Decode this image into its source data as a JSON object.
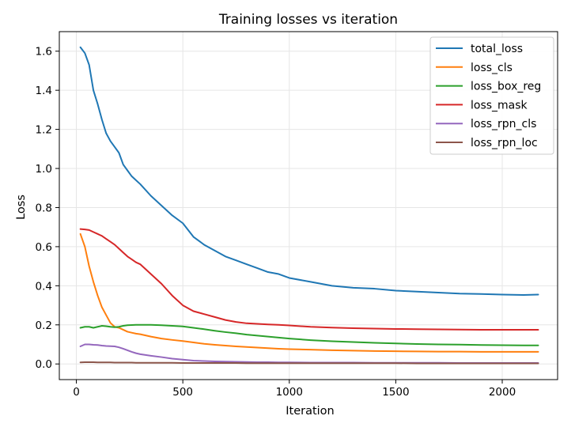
{
  "chart_data": {
    "type": "line",
    "title": "Training losses vs iteration",
    "xlabel": "Iteration",
    "ylabel": "Loss",
    "xlim": [
      -80,
      2260
    ],
    "ylim": [
      -0.08,
      1.7
    ],
    "xticks": [
      0,
      500,
      1000,
      1500,
      2000
    ],
    "yticks": [
      0.0,
      0.2,
      0.4,
      0.6,
      0.8,
      1.0,
      1.2,
      1.4,
      1.6
    ],
    "ytick_labels": [
      "0.0",
      "0.2",
      "0.4",
      "0.6",
      "0.8",
      "1.0",
      "1.2",
      "1.4",
      "1.6"
    ],
    "grid": true,
    "legend_position": "top-right",
    "x": [
      19,
      40,
      60,
      80,
      100,
      120,
      140,
      160,
      180,
      200,
      220,
      240,
      260,
      280,
      300,
      350,
      400,
      450,
      500,
      550,
      600,
      650,
      700,
      750,
      800,
      850,
      900,
      950,
      1000,
      1100,
      1200,
      1300,
      1400,
      1500,
      1600,
      1700,
      1800,
      1900,
      2000,
      2100,
      2169
    ],
    "series": [
      {
        "name": "total_loss",
        "color": "#1f77b4",
        "values": [
          1.62,
          1.59,
          1.53,
          1.4,
          1.33,
          1.25,
          1.18,
          1.14,
          1.11,
          1.08,
          1.02,
          0.99,
          0.96,
          0.94,
          0.92,
          0.86,
          0.81,
          0.76,
          0.72,
          0.65,
          0.61,
          0.58,
          0.55,
          0.53,
          0.51,
          0.49,
          0.47,
          0.46,
          0.44,
          0.42,
          0.4,
          0.39,
          0.385,
          0.375,
          0.37,
          0.365,
          0.36,
          0.358,
          0.355,
          0.353,
          0.355
        ]
      },
      {
        "name": "loss_cls",
        "color": "#ff7f0e",
        "values": [
          0.665,
          0.6,
          0.5,
          0.42,
          0.35,
          0.29,
          0.25,
          0.21,
          0.19,
          0.185,
          0.175,
          0.165,
          0.16,
          0.155,
          0.152,
          0.14,
          0.13,
          0.123,
          0.117,
          0.11,
          0.103,
          0.098,
          0.094,
          0.09,
          0.087,
          0.084,
          0.081,
          0.078,
          0.076,
          0.073,
          0.07,
          0.068,
          0.066,
          0.065,
          0.064,
          0.063,
          0.063,
          0.062,
          0.062,
          0.062,
          0.062
        ]
      },
      {
        "name": "loss_box_reg",
        "color": "#2ca02c",
        "values": [
          0.185,
          0.19,
          0.19,
          0.185,
          0.19,
          0.195,
          0.193,
          0.19,
          0.188,
          0.19,
          0.195,
          0.198,
          0.199,
          0.2,
          0.2,
          0.2,
          0.198,
          0.195,
          0.192,
          0.185,
          0.178,
          0.17,
          0.163,
          0.157,
          0.15,
          0.145,
          0.14,
          0.135,
          0.13,
          0.122,
          0.116,
          0.112,
          0.108,
          0.105,
          0.102,
          0.1,
          0.099,
          0.097,
          0.096,
          0.095,
          0.095
        ]
      },
      {
        "name": "loss_mask",
        "color": "#d62728",
        "values": [
          0.69,
          0.688,
          0.685,
          0.675,
          0.665,
          0.655,
          0.64,
          0.625,
          0.61,
          0.59,
          0.57,
          0.55,
          0.535,
          0.52,
          0.51,
          0.46,
          0.41,
          0.35,
          0.3,
          0.27,
          0.255,
          0.24,
          0.225,
          0.215,
          0.208,
          0.205,
          0.202,
          0.2,
          0.197,
          0.19,
          0.186,
          0.183,
          0.181,
          0.179,
          0.178,
          0.177,
          0.176,
          0.175,
          0.175,
          0.175,
          0.175
        ]
      },
      {
        "name": "loss_rpn_cls",
        "color": "#9467bd",
        "values": [
          0.09,
          0.1,
          0.1,
          0.098,
          0.097,
          0.094,
          0.092,
          0.091,
          0.09,
          0.085,
          0.078,
          0.07,
          0.062,
          0.055,
          0.05,
          0.042,
          0.035,
          0.027,
          0.022,
          0.017,
          0.015,
          0.013,
          0.012,
          0.011,
          0.01,
          0.009,
          0.009,
          0.008,
          0.008,
          0.007,
          0.007,
          0.007,
          0.006,
          0.006,
          0.006,
          0.006,
          0.005,
          0.005,
          0.005,
          0.005,
          0.005
        ]
      },
      {
        "name": "loss_rpn_loc",
        "color": "#8c564b",
        "values": [
          0.008,
          0.009,
          0.009,
          0.009,
          0.008,
          0.008,
          0.008,
          0.008,
          0.007,
          0.007,
          0.007,
          0.007,
          0.007,
          0.006,
          0.006,
          0.006,
          0.006,
          0.006,
          0.005,
          0.005,
          0.005,
          0.005,
          0.005,
          0.005,
          0.004,
          0.004,
          0.004,
          0.004,
          0.004,
          0.004,
          0.004,
          0.004,
          0.004,
          0.004,
          0.003,
          0.003,
          0.003,
          0.003,
          0.003,
          0.003,
          0.003
        ]
      }
    ]
  }
}
